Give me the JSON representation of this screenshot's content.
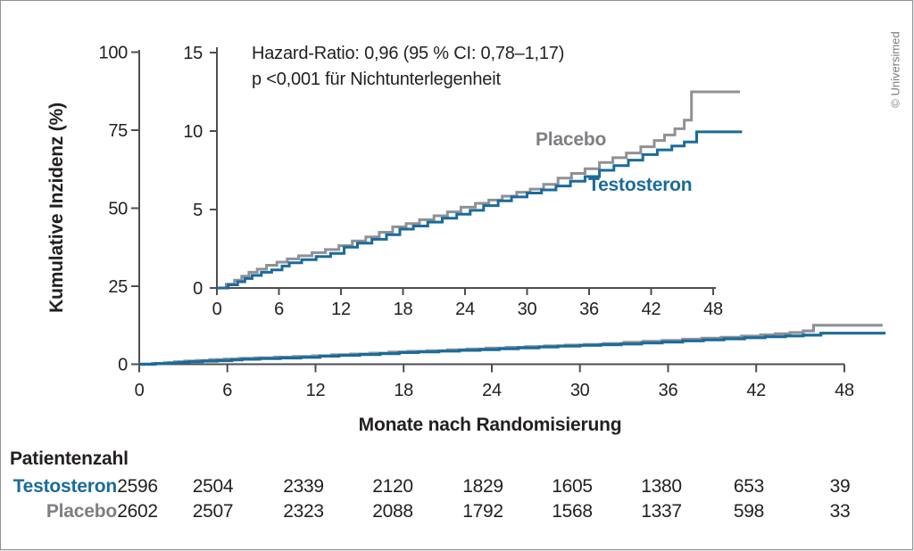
{
  "figure": {
    "credit": "© Universimed",
    "colors": {
      "testosteron": "#1a6b9b",
      "placebo_line": "#8f9195",
      "placebo_text": "#7d7f83",
      "text": "#231f20",
      "axis": "#4d4e52"
    }
  },
  "chart_data": {
    "type": "line",
    "subtype": "cumulative-incidence-step-curves-with-inset",
    "title": "",
    "xlabel": "Monate nach Randomisierung",
    "ylabel": "Kumulative Inzidenz (%)",
    "annotation": {
      "line1": "Hazard-Ratio: 0,96 (95 % CI: 0,78–1,17)",
      "line2": "p <0,001 für Nichtunterlegenheit"
    },
    "main_axes": {
      "x_ticks": [
        0,
        6,
        12,
        18,
        24,
        30,
        36,
        42,
        48
      ],
      "y_ticks": [
        0,
        25,
        50,
        75,
        100
      ],
      "xlim": [
        0,
        50.8
      ],
      "ylim": [
        0,
        100
      ],
      "grid": false
    },
    "inset_axes": {
      "x_ticks": [
        0,
        6,
        12,
        18,
        24,
        30,
        36,
        42,
        48
      ],
      "y_ticks": [
        0,
        5,
        10,
        15
      ],
      "xlim": [
        0,
        50.8
      ],
      "ylim": [
        0,
        15
      ],
      "grid": false
    },
    "legend_position": "inline-labels",
    "series": [
      {
        "name": "Placebo",
        "color": "#8f9195",
        "label_color": "#7d7f83",
        "end_month": 50.6,
        "steps": [
          [
            0,
            0
          ],
          [
            0.9,
            0.25
          ],
          [
            1.7,
            0.5
          ],
          [
            2.4,
            0.75
          ],
          [
            3.1,
            1.0
          ],
          [
            3.9,
            1.2
          ],
          [
            4.8,
            1.45
          ],
          [
            5.8,
            1.65
          ],
          [
            6.8,
            1.85
          ],
          [
            7.9,
            2.05
          ],
          [
            9.2,
            2.25
          ],
          [
            10.5,
            2.45
          ],
          [
            11.8,
            2.7
          ],
          [
            13.1,
            3.0
          ],
          [
            14.4,
            3.25
          ],
          [
            15.7,
            3.55
          ],
          [
            17,
            3.9
          ],
          [
            18.3,
            4.1
          ],
          [
            19.6,
            4.35
          ],
          [
            21,
            4.6
          ],
          [
            22.3,
            4.85
          ],
          [
            23.6,
            5.15
          ],
          [
            25,
            5.4
          ],
          [
            26.3,
            5.6
          ],
          [
            27.6,
            5.85
          ],
          [
            29,
            6.1
          ],
          [
            30.3,
            6.3
          ],
          [
            31.6,
            6.6
          ],
          [
            33,
            7.0
          ],
          [
            34.3,
            7.3
          ],
          [
            35.6,
            7.6
          ],
          [
            37,
            8.0
          ],
          [
            38.3,
            8.3
          ],
          [
            39.6,
            8.6
          ],
          [
            41,
            9.0
          ],
          [
            42.3,
            9.4
          ],
          [
            43.3,
            9.75
          ],
          [
            44.3,
            10.15
          ],
          [
            45.2,
            10.7
          ],
          [
            45.9,
            12.5
          ]
        ]
      },
      {
        "name": "Testosteron",
        "color": "#1a6b9b",
        "label_color": "#1a6b9b",
        "end_month": 50.8,
        "steps": [
          [
            0,
            0
          ],
          [
            1.1,
            0.2
          ],
          [
            2.0,
            0.4
          ],
          [
            2.7,
            0.6
          ],
          [
            3.4,
            0.8
          ],
          [
            4.3,
            1.0
          ],
          [
            5.3,
            1.15
          ],
          [
            6.3,
            1.4
          ],
          [
            7.0,
            1.6
          ],
          [
            8.2,
            1.8
          ],
          [
            9.6,
            2.0
          ],
          [
            11,
            2.2
          ],
          [
            12.3,
            2.6
          ],
          [
            13.6,
            2.85
          ],
          [
            15,
            3.1
          ],
          [
            16.4,
            3.4
          ],
          [
            17.7,
            3.75
          ],
          [
            19,
            3.95
          ],
          [
            20.4,
            4.2
          ],
          [
            21.8,
            4.45
          ],
          [
            23.2,
            4.7
          ],
          [
            24.5,
            4.95
          ],
          [
            25.8,
            5.25
          ],
          [
            27.2,
            5.55
          ],
          [
            28.5,
            5.8
          ],
          [
            30,
            6.05
          ],
          [
            31.4,
            6.25
          ],
          [
            32.8,
            6.5
          ],
          [
            34.2,
            6.8
          ],
          [
            35.6,
            7.1
          ],
          [
            37,
            7.5
          ],
          [
            38.4,
            7.8
          ],
          [
            39.8,
            8.15
          ],
          [
            41.2,
            8.5
          ],
          [
            42.6,
            8.8
          ],
          [
            44,
            9.05
          ],
          [
            45.2,
            9.3
          ],
          [
            46.4,
            9.95
          ]
        ]
      }
    ]
  },
  "risk_table": {
    "title": "Patientenzahl",
    "months": [
      0,
      6,
      12,
      18,
      24,
      30,
      36,
      42,
      48
    ],
    "rows": [
      {
        "name": "Testosteron",
        "color": "#1a6b9b",
        "values": [
          2596,
          2504,
          2339,
          2120,
          1829,
          1605,
          1380,
          653,
          39
        ]
      },
      {
        "name": "Placebo",
        "color": "#7d7f83",
        "values": [
          2602,
          2507,
          2323,
          2088,
          1792,
          1568,
          1337,
          598,
          33
        ]
      }
    ]
  }
}
